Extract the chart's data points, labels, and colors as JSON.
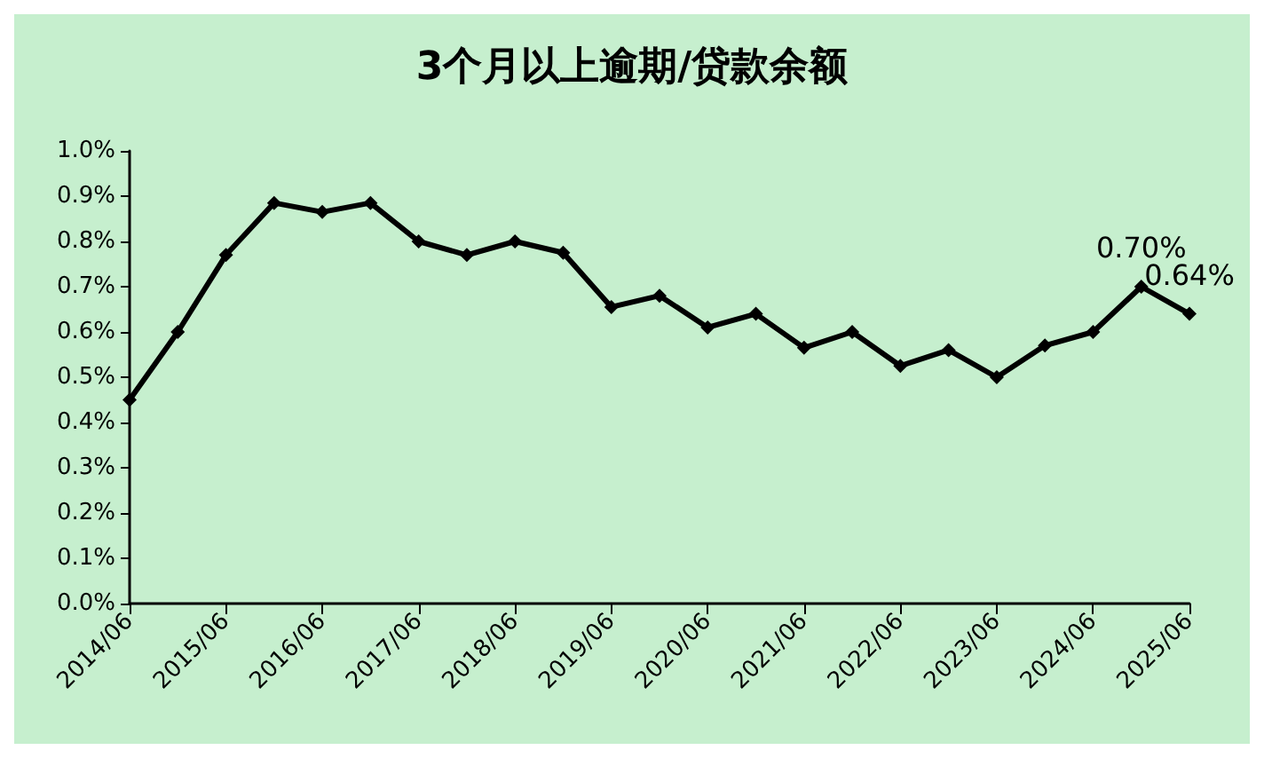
{
  "chart_data": {
    "type": "line",
    "title": "3个月以上逾期/贷款余额",
    "categories": [
      "2014/06",
      null,
      "2015/06",
      null,
      "2016/06",
      null,
      "2017/06",
      null,
      "2018/06",
      null,
      "2019/06",
      null,
      "2020/06",
      null,
      "2021/06",
      null,
      "2022/06",
      null,
      "2023/06",
      null,
      "2024/06",
      null,
      "2025/06"
    ],
    "series": [
      {
        "color": "#000000",
        "values": [
          0.45,
          0.6,
          0.77,
          0.885,
          0.865,
          0.885,
          0.8,
          0.77,
          0.8,
          0.775,
          0.655,
          0.68,
          0.61,
          0.64,
          0.565,
          0.6,
          0.525,
          0.56,
          0.5,
          0.57,
          0.6,
          0.7,
          0.64
        ],
        "value_labels": [
          null,
          null,
          null,
          null,
          null,
          null,
          null,
          null,
          null,
          null,
          null,
          null,
          null,
          null,
          null,
          null,
          null,
          null,
          null,
          null,
          null,
          "0.70%",
          "0.64%"
        ]
      }
    ],
    "ylim": [
      0,
      1
    ],
    "yticks": [
      {
        "value": 0,
        "label": "0.0%"
      },
      {
        "value": 0.1,
        "label": "0.1%"
      },
      {
        "value": 0.2,
        "label": "0.2%"
      },
      {
        "value": 0.3,
        "label": "0.3%"
      },
      {
        "value": 0.4,
        "label": "0.4%"
      },
      {
        "value": 0.5,
        "label": "0.5%"
      },
      {
        "value": 0.6,
        "label": "0.6%"
      },
      {
        "value": 0.7,
        "label": "0.7%"
      },
      {
        "value": 0.8,
        "label": "0.8%"
      },
      {
        "value": 0.9,
        "label": "0.9%"
      },
      {
        "value": 1,
        "label": "1.0%"
      }
    ],
    "grid": false,
    "marker": "diamond",
    "line_style": "solid"
  }
}
